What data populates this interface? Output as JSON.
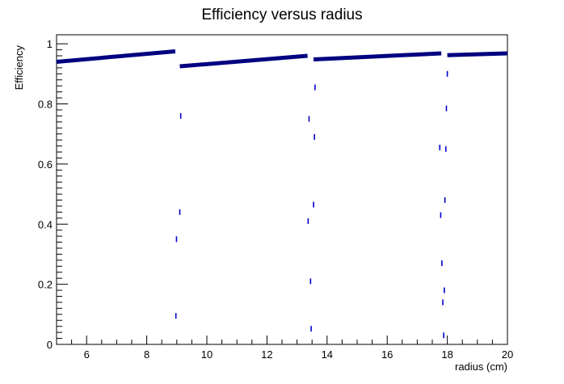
{
  "chart_data": {
    "type": "scatter",
    "title": "Efficiency versus radius",
    "xlabel": "radius (cm)",
    "ylabel": "Efficiency",
    "xlim": [
      5,
      20
    ],
    "ylim": [
      0,
      1.03
    ],
    "grid": false,
    "x_ticks": [
      6,
      8,
      10,
      12,
      14,
      16,
      18,
      20
    ],
    "y_ticks": [
      0,
      0.2,
      0.4,
      0.6,
      0.8,
      1
    ],
    "y_tick_labels": [
      "0",
      "0.2",
      "0.4",
      "0.6",
      "0.8",
      "1"
    ],
    "marker_color": "#0000cc",
    "series_color": "#000080",
    "series": [
      {
        "segments": [
          {
            "x_start": 5.0,
            "x_end": 8.95,
            "y_start": 0.94,
            "y_end": 0.975
          },
          {
            "x_start": 9.1,
            "x_end": 13.35,
            "y_start": 0.925,
            "y_end": 0.96
          },
          {
            "x_start": 13.55,
            "x_end": 17.8,
            "y_start": 0.948,
            "y_end": 0.968
          },
          {
            "x_start": 18.0,
            "x_end": 20.0,
            "y_start": 0.962,
            "y_end": 0.968
          }
        ],
        "outliers": [
          {
            "x": 8.97,
            "y": 0.095
          },
          {
            "x": 8.99,
            "y": 0.35
          },
          {
            "x": 9.1,
            "y": 0.44
          },
          {
            "x": 9.13,
            "y": 0.76
          },
          {
            "x": 13.37,
            "y": 0.41
          },
          {
            "x": 13.4,
            "y": 0.75
          },
          {
            "x": 13.45,
            "y": 0.21
          },
          {
            "x": 13.47,
            "y": 0.052
          },
          {
            "x": 13.55,
            "y": 0.465
          },
          {
            "x": 13.58,
            "y": 0.69
          },
          {
            "x": 13.6,
            "y": 0.855
          },
          {
            "x": 17.75,
            "y": 0.655
          },
          {
            "x": 17.78,
            "y": 0.43
          },
          {
            "x": 17.82,
            "y": 0.27
          },
          {
            "x": 17.85,
            "y": 0.14
          },
          {
            "x": 17.88,
            "y": 0.03
          },
          {
            "x": 17.9,
            "y": 0.18
          },
          {
            "x": 17.92,
            "y": 0.48
          },
          {
            "x": 17.95,
            "y": 0.65
          },
          {
            "x": 17.97,
            "y": 0.785
          },
          {
            "x": 18.0,
            "y": 0.9
          }
        ]
      }
    ]
  }
}
